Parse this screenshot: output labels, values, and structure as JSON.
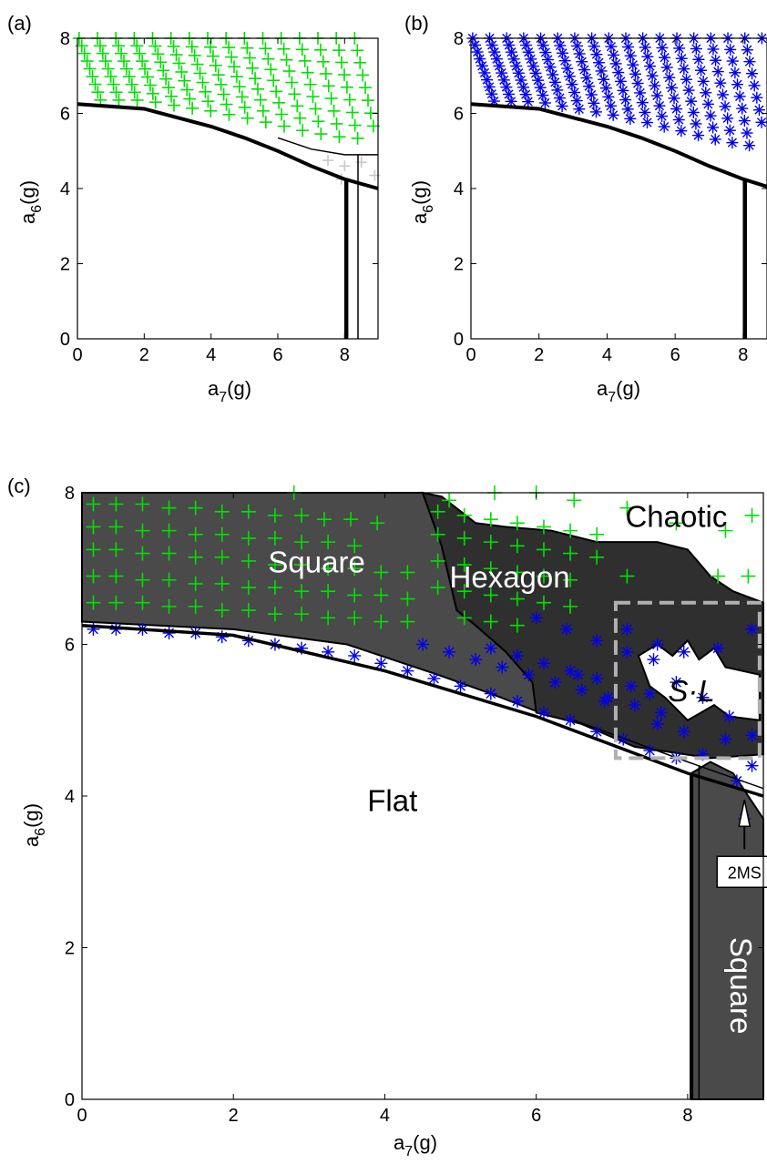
{
  "chart_data": [
    {
      "type": "scatter",
      "panel_label": "(a)",
      "xlabel": "a",
      "xlabel_sub": "7",
      "xlabel_unit": "(g)",
      "ylabel": "a",
      "ylabel_sub": "6",
      "ylabel_unit": "(g)",
      "xlim": [
        0,
        9
      ],
      "ylim": [
        0,
        8
      ],
      "xticks": [
        "0",
        "2",
        "4",
        "6",
        "8"
      ],
      "yticks": [
        "0",
        "2",
        "4",
        "6",
        "8"
      ],
      "marker": "plus",
      "marker_color": "#00e000",
      "secondary_marker_color": "#c8c8c8",
      "boundaries": {
        "lower_curve": [
          [
            0,
            6.25
          ],
          [
            2,
            6.12
          ],
          [
            4,
            5.65
          ],
          [
            5,
            5.35
          ],
          [
            6,
            5.0
          ],
          [
            7,
            4.6
          ],
          [
            8,
            4.25
          ],
          [
            9,
            4.0
          ]
        ],
        "upper_curve": [
          [
            6,
            5.35
          ],
          [
            7,
            5.05
          ],
          [
            8,
            4.9
          ],
          [
            9,
            4.9
          ]
        ],
        "vertical_left_x": 8.05,
        "vertical_left_top": 4.25,
        "vertical_right_x": 8.4,
        "vertical_right_top": 4.9
      }
    },
    {
      "type": "scatter",
      "panel_label": "(b)",
      "xlabel": "a",
      "xlabel_sub": "7",
      "xlabel_unit": "(g)",
      "ylabel": "a",
      "ylabel_sub": "6",
      "ylabel_unit": "(g)",
      "xlim": [
        0,
        8.7
      ],
      "ylim": [
        0,
        8
      ],
      "xticks": [
        "0",
        "2",
        "4",
        "6",
        "8"
      ],
      "yticks": [
        "0",
        "2",
        "4",
        "6",
        "8"
      ],
      "marker": "asterisk",
      "marker_color": "#0000ee",
      "boundaries": {
        "lower_curve": [
          [
            0,
            6.25
          ],
          [
            2,
            6.12
          ],
          [
            4,
            5.65
          ],
          [
            5,
            5.35
          ],
          [
            6,
            5.0
          ],
          [
            7,
            4.6
          ],
          [
            8,
            4.25
          ],
          [
            8.7,
            4.05
          ]
        ],
        "vertical_x": 8.05,
        "vertical_top": 4.25
      }
    },
    {
      "type": "scatter",
      "panel_label": "(c)",
      "xlabel": "a",
      "xlabel_sub": "7",
      "xlabel_unit": "(g)",
      "ylabel": "a",
      "ylabel_sub": "6",
      "ylabel_unit": "(g)",
      "xlim": [
        0,
        9
      ],
      "ylim": [
        0,
        8
      ],
      "xticks": [
        "0",
        "2",
        "4",
        "6",
        "8"
      ],
      "yticks": [
        "0",
        "2",
        "4",
        "6",
        "8"
      ],
      "regions": [
        {
          "label": "Square",
          "x": 3.1,
          "y": 6.95,
          "text_color": "#ffffff"
        },
        {
          "label": "Hexagon",
          "x": 5.65,
          "y": 6.75,
          "text_color": "#ffffff"
        },
        {
          "label": "Chaotic",
          "x": 7.85,
          "y": 7.55,
          "text_color": "#000000"
        },
        {
          "label": "S·L",
          "x": 8.05,
          "y": 5.25,
          "text_color": "#000000"
        },
        {
          "label": "Flat",
          "x": 4.1,
          "y": 3.8,
          "text_color": "#000000"
        },
        {
          "label": "Square",
          "x": 8.7,
          "y": 1.5,
          "text_color": "#ffffff"
        }
      ],
      "callout": {
        "label": "2MS",
        "x": 8.75,
        "y": 3.0
      },
      "plus_points": [
        [
          0.15,
          7.85
        ],
        [
          0.45,
          7.85
        ],
        [
          0.8,
          7.85
        ],
        [
          1.15,
          7.8
        ],
        [
          1.5,
          7.8
        ],
        [
          1.85,
          7.75
        ],
        [
          2.2,
          7.75
        ],
        [
          2.55,
          7.7
        ],
        [
          2.8,
          8.0
        ],
        [
          2.9,
          7.7
        ],
        [
          3.2,
          7.65
        ],
        [
          3.55,
          7.65
        ],
        [
          3.9,
          7.6
        ],
        [
          0.15,
          7.55
        ],
        [
          0.45,
          7.55
        ],
        [
          0.8,
          7.5
        ],
        [
          1.15,
          7.5
        ],
        [
          1.5,
          7.45
        ],
        [
          1.85,
          7.45
        ],
        [
          2.2,
          7.4
        ],
        [
          2.55,
          7.4
        ],
        [
          2.9,
          7.35
        ],
        [
          3.25,
          7.35
        ],
        [
          3.6,
          7.3
        ],
        [
          0.15,
          7.25
        ],
        [
          0.45,
          7.25
        ],
        [
          0.8,
          7.2
        ],
        [
          1.15,
          7.2
        ],
        [
          1.5,
          7.15
        ],
        [
          1.85,
          7.15
        ],
        [
          2.2,
          7.1
        ],
        [
          2.55,
          7.05
        ],
        [
          2.9,
          7.05
        ],
        [
          3.25,
          7.0
        ],
        [
          3.6,
          7.0
        ],
        [
          3.95,
          6.95
        ],
        [
          4.3,
          6.95
        ],
        [
          0.15,
          6.9
        ],
        [
          0.45,
          6.9
        ],
        [
          0.8,
          6.85
        ],
        [
          1.15,
          6.85
        ],
        [
          1.5,
          6.8
        ],
        [
          1.85,
          6.8
        ],
        [
          2.2,
          6.75
        ],
        [
          2.55,
          6.75
        ],
        [
          2.9,
          6.7
        ],
        [
          3.25,
          6.7
        ],
        [
          3.6,
          6.65
        ],
        [
          3.95,
          6.65
        ],
        [
          4.3,
          6.6
        ],
        [
          0.15,
          6.55
        ],
        [
          0.45,
          6.55
        ],
        [
          0.8,
          6.55
        ],
        [
          1.15,
          6.5
        ],
        [
          1.5,
          6.5
        ],
        [
          1.85,
          6.45
        ],
        [
          2.2,
          6.45
        ],
        [
          2.55,
          6.4
        ],
        [
          2.9,
          6.4
        ],
        [
          3.25,
          6.35
        ],
        [
          3.6,
          6.35
        ],
        [
          3.95,
          6.3
        ],
        [
          4.3,
          6.3
        ],
        [
          4.7,
          7.75
        ],
        [
          5.05,
          7.7
        ],
        [
          5.4,
          7.65
        ],
        [
          5.75,
          7.6
        ],
        [
          6.1,
          7.55
        ],
        [
          6.45,
          7.5
        ],
        [
          6.8,
          7.45
        ],
        [
          4.7,
          7.45
        ],
        [
          5.05,
          7.4
        ],
        [
          5.4,
          7.35
        ],
        [
          5.75,
          7.3
        ],
        [
          6.1,
          7.25
        ],
        [
          6.45,
          7.2
        ],
        [
          6.8,
          7.15
        ],
        [
          4.7,
          7.1
        ],
        [
          5.05,
          7.05
        ],
        [
          5.4,
          7.0
        ],
        [
          5.75,
          6.95
        ],
        [
          6.1,
          6.9
        ],
        [
          6.45,
          6.85
        ],
        [
          4.7,
          6.75
        ],
        [
          5.05,
          6.7
        ],
        [
          5.4,
          6.65
        ],
        [
          5.75,
          6.6
        ],
        [
          6.1,
          6.55
        ],
        [
          6.45,
          6.5
        ],
        [
          5.05,
          6.35
        ],
        [
          5.4,
          6.3
        ],
        [
          5.75,
          6.25
        ],
        [
          4.85,
          7.9
        ],
        [
          5.45,
          8.0
        ],
        [
          6.0,
          8.0
        ],
        [
          6.5,
          7.9
        ],
        [
          7.2,
          7.8
        ],
        [
          7.85,
          7.6
        ],
        [
          8.5,
          7.5
        ],
        [
          8.85,
          7.7
        ],
        [
          8.4,
          6.9
        ],
        [
          8.8,
          6.9
        ],
        [
          7.2,
          6.9
        ]
      ],
      "star_points": [
        [
          0.15,
          6.2
        ],
        [
          0.45,
          6.2
        ],
        [
          0.8,
          6.2
        ],
        [
          1.15,
          6.15
        ],
        [
          1.5,
          6.15
        ],
        [
          1.85,
          6.1
        ],
        [
          2.2,
          6.05
        ],
        [
          2.55,
          6.0
        ],
        [
          2.9,
          5.95
        ],
        [
          3.25,
          5.9
        ],
        [
          3.6,
          5.85
        ],
        [
          3.95,
          5.75
        ],
        [
          4.3,
          5.65
        ],
        [
          4.65,
          5.55
        ],
        [
          5.0,
          5.45
        ],
        [
          5.4,
          5.35
        ],
        [
          5.75,
          5.25
        ],
        [
          6.1,
          5.1
        ],
        [
          6.45,
          5.0
        ],
        [
          6.8,
          4.85
        ],
        [
          7.15,
          4.75
        ],
        [
          7.5,
          4.6
        ],
        [
          7.85,
          4.5
        ],
        [
          4.5,
          6.0
        ],
        [
          4.85,
          5.9
        ],
        [
          5.2,
          5.8
        ],
        [
          5.55,
          5.7
        ],
        [
          5.9,
          5.6
        ],
        [
          6.25,
          5.5
        ],
        [
          6.6,
          5.4
        ],
        [
          6.95,
          5.3
        ],
        [
          7.3,
          5.2
        ],
        [
          7.65,
          5.1
        ],
        [
          5.4,
          5.95
        ],
        [
          5.75,
          5.85
        ],
        [
          6.1,
          5.75
        ],
        [
          6.45,
          5.65
        ],
        [
          6.8,
          5.55
        ],
        [
          6.0,
          6.35
        ],
        [
          6.4,
          6.2
        ],
        [
          6.8,
          6.05
        ],
        [
          7.2,
          5.9
        ],
        [
          7.55,
          5.8
        ],
        [
          7.2,
          6.2
        ],
        [
          7.6,
          6.0
        ],
        [
          7.95,
          5.9
        ],
        [
          8.4,
          5.95
        ],
        [
          8.85,
          6.2
        ],
        [
          7.5,
          5.35
        ],
        [
          7.85,
          5.5
        ],
        [
          8.2,
          5.3
        ],
        [
          8.55,
          5.05
        ],
        [
          8.85,
          4.8
        ],
        [
          6.9,
          5.25
        ],
        [
          6.55,
          5.6
        ],
        [
          7.25,
          5.45
        ],
        [
          7.6,
          4.95
        ],
        [
          7.95,
          4.85
        ],
        [
          8.5,
          4.75
        ],
        [
          8.85,
          4.4
        ],
        [
          8.2,
          4.55
        ],
        [
          8.65,
          4.2
        ],
        [
          8.75,
          3.7
        ]
      ],
      "dashed_box": {
        "x0": 7.05,
        "x1": 8.95,
        "y0": 4.5,
        "y1": 6.55,
        "color": "#b0b0b0"
      },
      "colors": {
        "square_region": "#4a4a4a",
        "hexagon_region": "#2f2f2f",
        "flat_region": "#ffffff",
        "chaotic_region": "#ffffff",
        "plus_marker": "#00e000",
        "star_marker": "#0000ee"
      }
    }
  ]
}
